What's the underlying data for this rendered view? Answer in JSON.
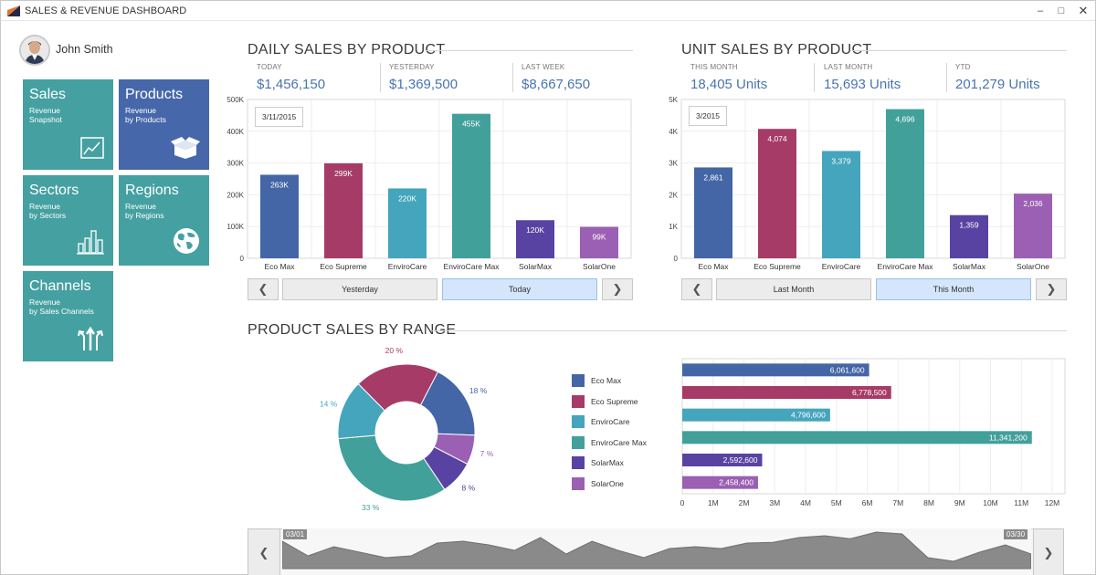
{
  "window": {
    "title": "SALES & REVENUE DASHBOARD",
    "min": "–",
    "max": "□",
    "close": "✕"
  },
  "user": {
    "name": "John Smith"
  },
  "tiles": [
    {
      "title": "Sales",
      "sub1": "Revenue",
      "sub2": "Snapshot",
      "icon": "line-chart-icon"
    },
    {
      "title": "Products",
      "sub1": "Revenue",
      "sub2": "by Products",
      "icon": "box-icon"
    },
    {
      "title": "Sectors",
      "sub1": "Revenue",
      "sub2": "by Sectors",
      "icon": "bar-chart-icon"
    },
    {
      "title": "Regions",
      "sub1": "Revenue",
      "sub2": "by Regions",
      "icon": "globe-icon"
    },
    {
      "title": "Channels",
      "sub1": "Revenue",
      "sub2": "by Sales Channels",
      "icon": "channels-icon"
    }
  ],
  "colors": {
    "teal": "#45a0a1",
    "blue": "#4668aa",
    "kpi": "#4a74b0"
  },
  "daily": {
    "title": "DAILY SALES BY PRODUCT",
    "kpis": [
      {
        "label": "TODAY",
        "value": "$1,456,150"
      },
      {
        "label": "YESTERDAY",
        "value": "$1,369,500"
      },
      {
        "label": "LAST WEEK",
        "value": "$8,667,650"
      }
    ],
    "date": "3/11/2015",
    "prev": "❮",
    "next": "❯",
    "btn1": "Yesterday",
    "btn2": "Today"
  },
  "unit": {
    "title": "UNIT SALES BY PRODUCT",
    "kpis": [
      {
        "label": "THIS MONTH",
        "value": "18,405 Units"
      },
      {
        "label": "LAST MONTH",
        "value": "15,693 Units"
      },
      {
        "label": "YTD",
        "value": "201,279 Units"
      }
    ],
    "date": "3/2015",
    "prev": "❮",
    "next": "❯",
    "btn1": "Last Month",
    "btn2": "This Month"
  },
  "range": {
    "title": "PRODUCT SALES BY RANGE",
    "start_label": "03/01",
    "end_label": "03/30",
    "prev": "❮",
    "next": "❯"
  },
  "chart_data": [
    {
      "type": "bar",
      "id": "daily-sales",
      "categories": [
        "Eco Max",
        "Eco Supreme",
        "EnviroCare",
        "EnviroCare Max",
        "SolarMax",
        "SolarOne"
      ],
      "values": [
        263000,
        299000,
        220000,
        455000,
        120000,
        99000
      ],
      "labels": [
        "263K",
        "299K",
        "220K",
        "455K",
        "120K",
        "99K"
      ],
      "yticks": [
        "0",
        "100K",
        "200K",
        "300K",
        "400K",
        "500K"
      ],
      "ylim": [
        0,
        500000
      ],
      "colors": [
        "#4466a6",
        "#a73b67",
        "#44a5bd",
        "#42a09b",
        "#5843a2",
        "#9b5fb4"
      ]
    },
    {
      "type": "bar",
      "id": "unit-sales",
      "categories": [
        "Eco Max",
        "Eco Supreme",
        "EnviroCare",
        "EnviroCare Max",
        "SolarMax",
        "SolarOne"
      ],
      "values": [
        2861,
        4074,
        3379,
        4696,
        1359,
        2036
      ],
      "labels": [
        "2,861",
        "4,074",
        "3,379",
        "4,696",
        "1,359",
        "2,036"
      ],
      "yticks": [
        "0",
        "1K",
        "2K",
        "3K",
        "4K",
        "5K"
      ],
      "ylim": [
        0,
        5000
      ],
      "colors": [
        "#4466a6",
        "#a73b67",
        "#44a5bd",
        "#42a09b",
        "#5843a2",
        "#9b5fb4"
      ]
    },
    {
      "type": "pie",
      "id": "range-donut",
      "categories": [
        "Eco Max",
        "Eco Supreme",
        "EnviroCare",
        "EnviroCare Max",
        "SolarMax",
        "SolarOne"
      ],
      "values": [
        18,
        20,
        14,
        33,
        8,
        7
      ],
      "labels": [
        "18 %",
        "20 %",
        "14 %",
        "33 %",
        "8 %",
        "7 %"
      ],
      "colors": [
        "#4466a6",
        "#a73b67",
        "#44a5bd",
        "#42a09b",
        "#5843a2",
        "#9b5fb4"
      ]
    },
    {
      "type": "bar",
      "id": "range-hbar",
      "orientation": "horizontal",
      "categories": [
        "Eco Max",
        "Eco Supreme",
        "EnviroCare",
        "EnviroCare Max",
        "SolarMax",
        "SolarOne"
      ],
      "values": [
        6061600,
        6778500,
        4796600,
        11341200,
        2592600,
        2458400
      ],
      "labels": [
        "6,061,600",
        "6,778,500",
        "4,796,600",
        "11,341,200",
        "2,592,600",
        "2,458,400"
      ],
      "xticks": [
        "0",
        "1M",
        "2M",
        "3M",
        "4M",
        "5M",
        "6M",
        "7M",
        "8M",
        "9M",
        "10M",
        "11M",
        "12M"
      ],
      "xlim": [
        0,
        12000000
      ],
      "colors": [
        "#4466a6",
        "#a73b67",
        "#44a5bd",
        "#42a09b",
        "#5843a2",
        "#9b5fb4"
      ]
    },
    {
      "type": "area",
      "id": "range-navigator",
      "x": [
        "03/01",
        "03/02",
        "03/03",
        "03/04",
        "03/05",
        "03/06",
        "03/07",
        "03/08",
        "03/09",
        "03/10",
        "03/11",
        "03/12",
        "03/13",
        "03/14",
        "03/15",
        "03/16",
        "03/17",
        "03/18",
        "03/19",
        "03/20",
        "03/21",
        "03/22",
        "03/23",
        "03/24",
        "03/25",
        "03/26",
        "03/27",
        "03/28",
        "03/29",
        "03/30"
      ],
      "values": [
        0.75,
        0.35,
        0.6,
        0.45,
        0.3,
        0.35,
        0.7,
        0.75,
        0.65,
        0.5,
        0.85,
        0.4,
        0.75,
        0.5,
        0.3,
        0.55,
        0.6,
        0.55,
        0.7,
        0.72,
        0.85,
        0.9,
        0.82,
        1.0,
        0.95,
        0.3,
        0.2,
        0.45,
        0.65,
        0.4
      ],
      "color": "#8a8a8a"
    }
  ]
}
